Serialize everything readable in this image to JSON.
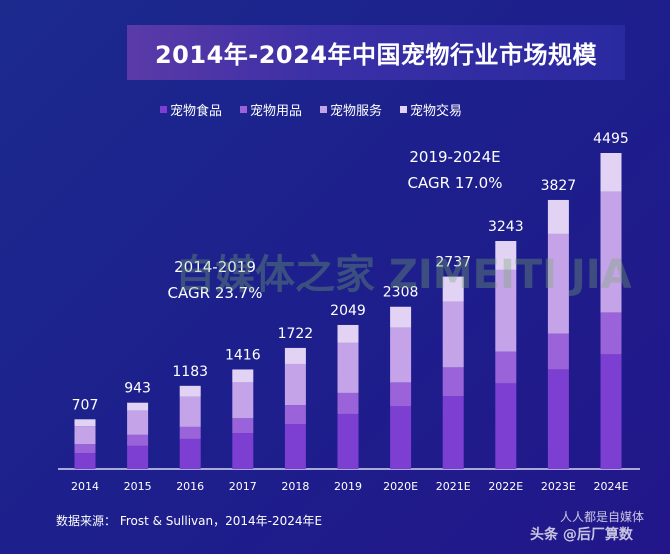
{
  "chart_data": {
    "type": "bar",
    "stacked": true,
    "title": "2014年-2024年中国宠物行业市场规模",
    "categories": [
      "2014",
      "2015",
      "2016",
      "2017",
      "2018",
      "2019",
      "2020E",
      "2021E",
      "2022E",
      "2023E",
      "2024E"
    ],
    "totals": [
      707,
      943,
      1183,
      1416,
      1722,
      2049,
      2308,
      2737,
      3243,
      3827,
      4495
    ],
    "series": [
      {
        "name": "宠物食品",
        "color": "#7c3fd2",
        "values": [
          226,
          329,
          428,
          510,
          640,
          783,
          892,
          1035,
          1218,
          1417,
          1631
        ]
      },
      {
        "name": "宠物用品",
        "color": "#9a63d9",
        "values": [
          127,
          157,
          171,
          212,
          270,
          299,
          340,
          411,
          453,
          510,
          596
        ]
      },
      {
        "name": "宠物服务",
        "color": "#c4a3e9",
        "values": [
          255,
          343,
          428,
          510,
          584,
          712,
          779,
          936,
          1161,
          1417,
          1716
        ]
      },
      {
        "name": "宠物交易",
        "color": "#e2d3f5",
        "values": [
          99,
          114,
          156,
          184,
          228,
          255,
          297,
          355,
          411,
          483,
          552
        ]
      }
    ],
    "ylim": [
      0,
      4700
    ],
    "grid": false,
    "legend_position": "top",
    "annotations": [
      {
        "line1": "2014-2019",
        "line2": "CAGR 23.7%"
      },
      {
        "line1": "2019-2024E",
        "line2": "CAGR 17.0%"
      }
    ]
  },
  "source": "数据来源：  Frost & Sullivan，2014年-2024年E",
  "watermarks": {
    "center": "自媒体之家 ZIMEITI JIA",
    "bottom_right_1": "人人都是自媒体",
    "bottom_right_2": "头条 @后厂算数"
  }
}
